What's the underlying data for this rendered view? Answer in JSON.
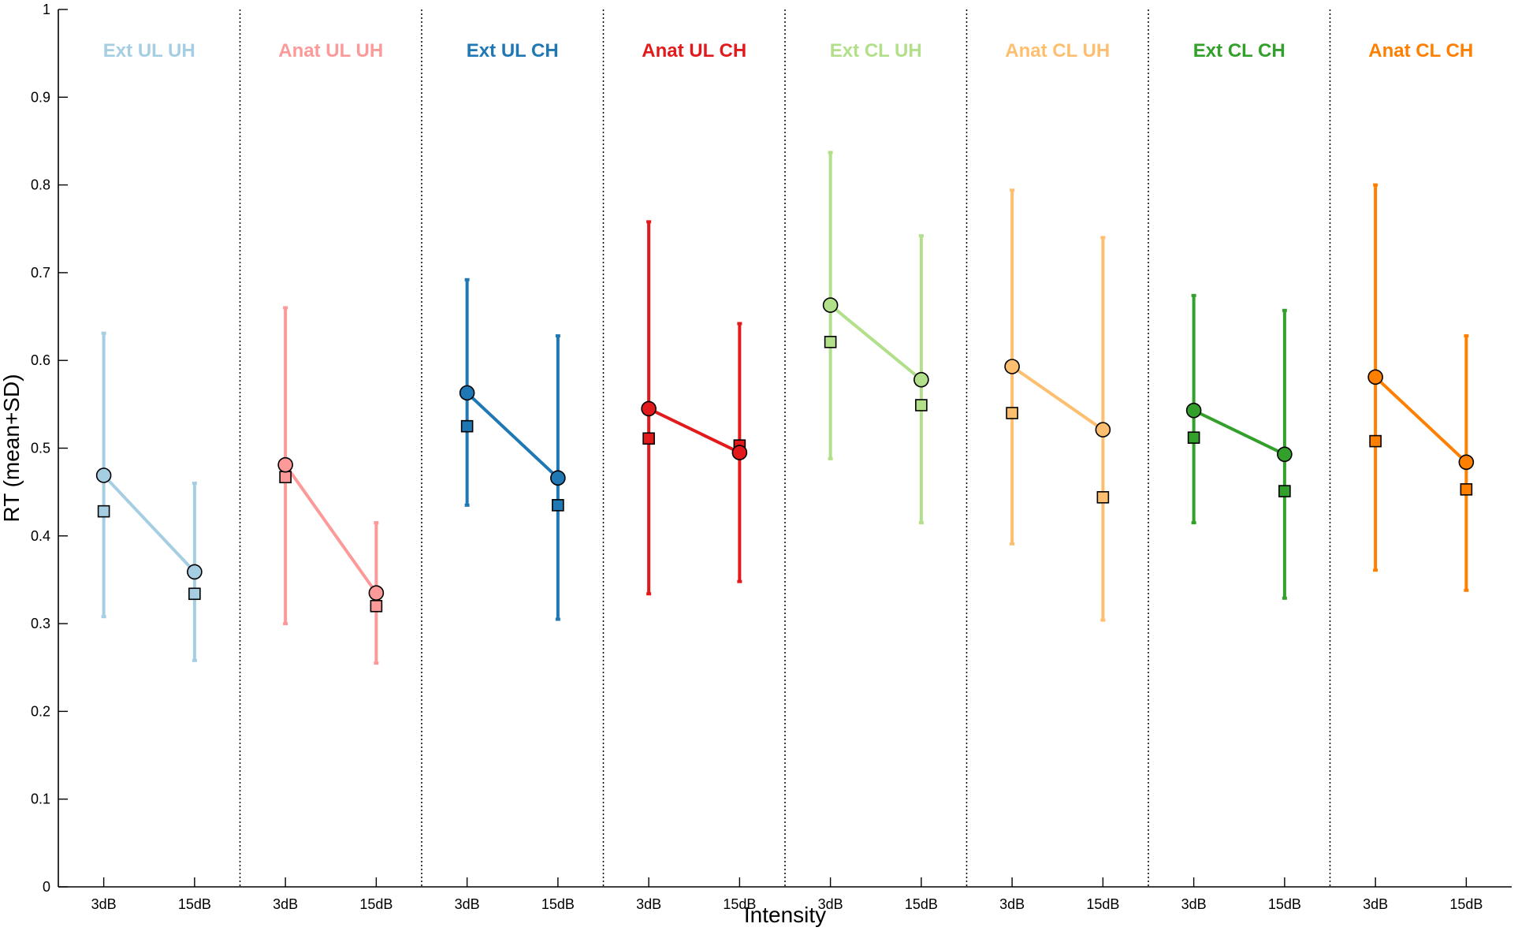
{
  "chart_data": {
    "type": "line",
    "ylabel": "RT (mean+SD)",
    "xlabel": "Intensity",
    "ylim": [
      0,
      1
    ],
    "yticks": [
      "0",
      "0.1",
      "0.2",
      "0.3",
      "0.4",
      "0.5",
      "0.6",
      "0.7",
      "0.8",
      "0.9",
      "1"
    ],
    "categories": [
      "3dB",
      "15dB"
    ],
    "grid": false,
    "panels": [
      {
        "title": "Ext UL UH",
        "color": "#a6cee3",
        "circle_mean": [
          0.469,
          0.359
        ],
        "square_mean": [
          0.428,
          0.334
        ],
        "sd_upper": [
          0.631,
          0.46
        ],
        "sd_lower": [
          0.308,
          0.258
        ]
      },
      {
        "title": "Anat UL UH",
        "color": "#fb9a99",
        "circle_mean": [
          0.481,
          0.335
        ],
        "square_mean": [
          0.467,
          0.32
        ],
        "sd_upper": [
          0.66,
          0.415
        ],
        "sd_lower": [
          0.3,
          0.255
        ]
      },
      {
        "title": "Ext UL CH",
        "color": "#1f78b4",
        "circle_mean": [
          0.563,
          0.466
        ],
        "square_mean": [
          0.525,
          0.435
        ],
        "sd_upper": [
          0.692,
          0.628
        ],
        "sd_lower": [
          0.435,
          0.305
        ]
      },
      {
        "title": "Anat UL CH",
        "color": "#e31a1c",
        "circle_mean": [
          0.545,
          0.495
        ],
        "square_mean": [
          0.511,
          0.503
        ],
        "sd_upper": [
          0.758,
          0.642
        ],
        "sd_lower": [
          0.334,
          0.348
        ]
      },
      {
        "title": "Ext CL UH",
        "color": "#b2df8a",
        "circle_mean": [
          0.663,
          0.578
        ],
        "square_mean": [
          0.621,
          0.549
        ],
        "sd_upper": [
          0.837,
          0.742
        ],
        "sd_lower": [
          0.488,
          0.415
        ]
      },
      {
        "title": "Anat CL UH",
        "color": "#fdbf6f",
        "circle_mean": [
          0.593,
          0.521
        ],
        "square_mean": [
          0.54,
          0.444
        ],
        "sd_upper": [
          0.794,
          0.74
        ],
        "sd_lower": [
          0.391,
          0.304
        ]
      },
      {
        "title": "Ext CL CH",
        "color": "#33a02c",
        "circle_mean": [
          0.543,
          0.493
        ],
        "square_mean": [
          0.512,
          0.451
        ],
        "sd_upper": [
          0.674,
          0.657
        ],
        "sd_lower": [
          0.415,
          0.329
        ]
      },
      {
        "title": "Anat CL CH",
        "color": "#ff7f00",
        "circle_mean": [
          0.581,
          0.484
        ],
        "square_mean": [
          0.508,
          0.453
        ],
        "sd_upper": [
          0.8,
          0.628
        ],
        "sd_lower": [
          0.361,
          0.338
        ]
      }
    ]
  }
}
